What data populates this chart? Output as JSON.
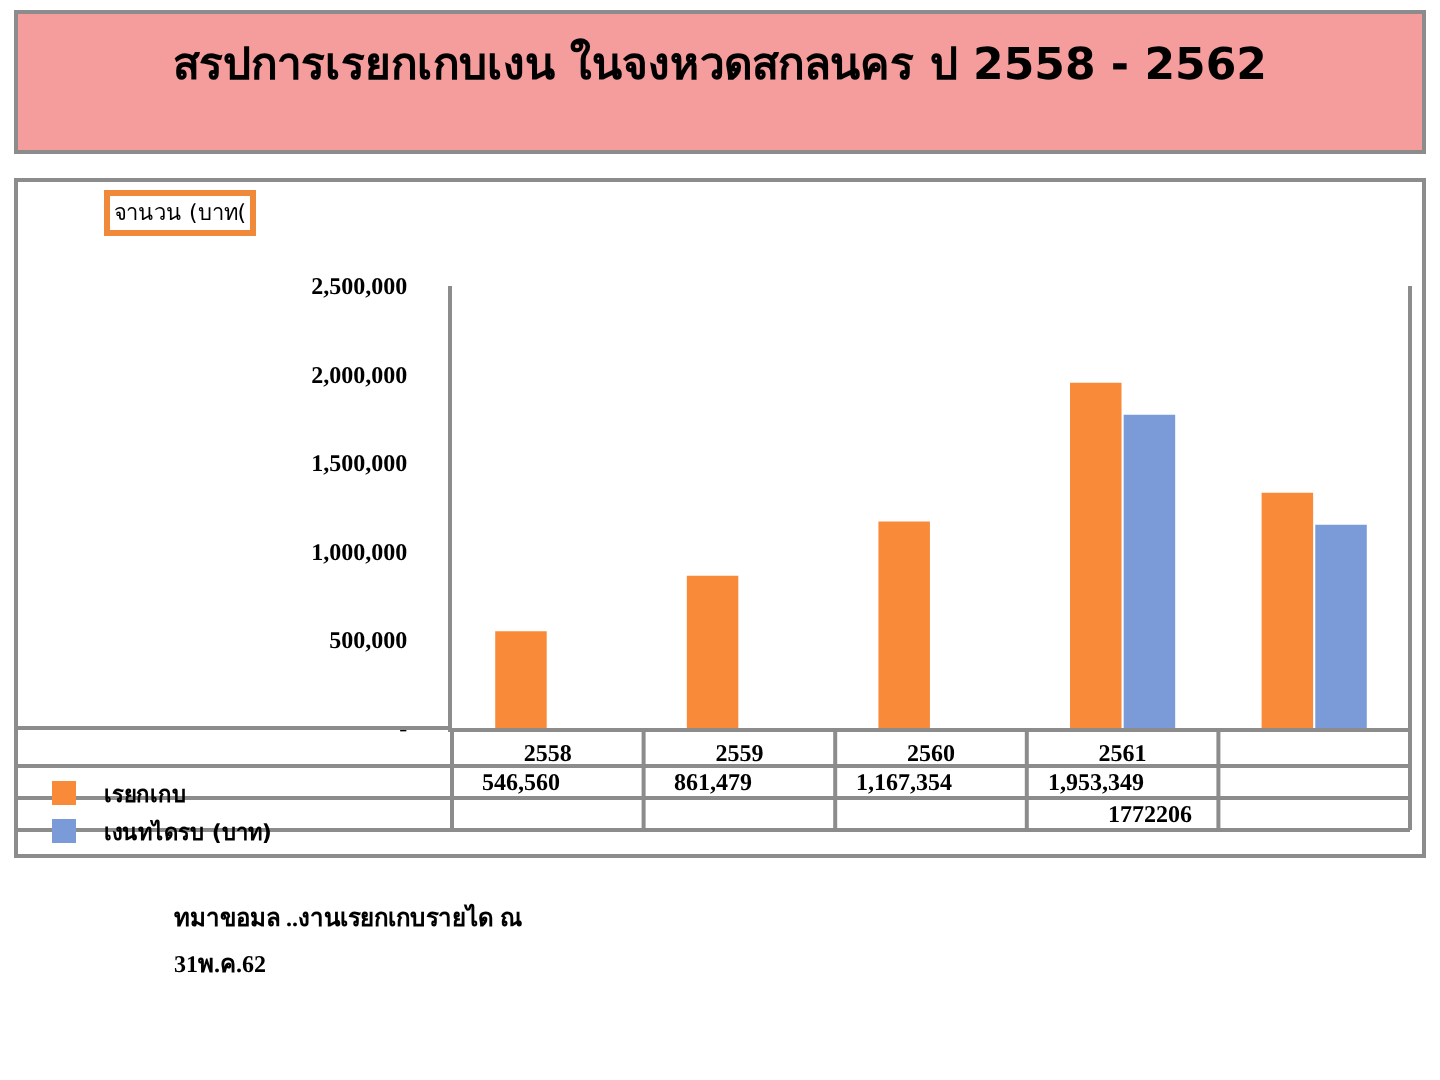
{
  "chart_data": {
    "type": "bar",
    "title": "สรปการเรยกเกบเงน ในจงหวดสกลนคร ป 2558 - 2562",
    "ylabel": "จานวน (บาท(",
    "categories": [
      "2558",
      "2559",
      "2560",
      "2561",
      null
    ],
    "series": [
      {
        "name": "เรยกเกบ",
        "color": "#f88a3a",
        "values": [
          546560,
          861479,
          1167354,
          1953349,
          1330000
        ],
        "value_labels": [
          "546,560",
          "861,479",
          "1,167,354",
          "1,953,349",
          null
        ]
      },
      {
        "name": "เงนทไดรบ (บาท)",
        "color": "#7a9ad8",
        "values": [
          null,
          null,
          null,
          1772206,
          1150000
        ],
        "value_labels": [
          null,
          null,
          null,
          "1772206",
          null
        ]
      }
    ],
    "ylim": [
      0,
      2500000
    ],
    "yticks": [
      {
        "value": 0,
        "label": "-"
      },
      {
        "value": 500000,
        "label": "500,000"
      },
      {
        "value": 1000000,
        "label": "1,000,000"
      },
      {
        "value": 1500000,
        "label": "1,500,000"
      },
      {
        "value": 2000000,
        "label": "2,000,000"
      },
      {
        "value": 2500000,
        "label": "2,500,000"
      }
    ],
    "legend": "bottom left",
    "annotations": [
      "ทมาขอมล ..งานเรยกเกบรายได ณ",
      "31พ.ค.62"
    ]
  }
}
